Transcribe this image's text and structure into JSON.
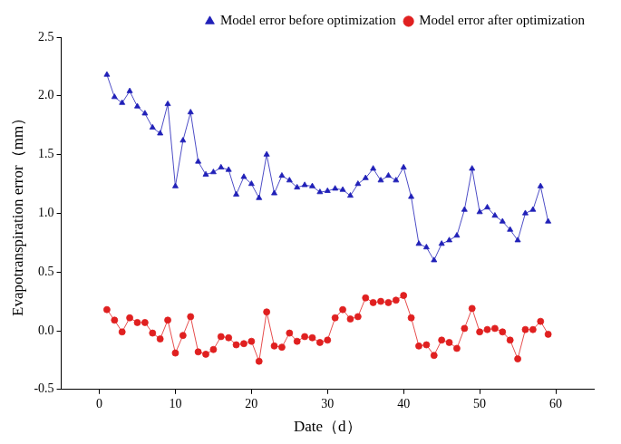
{
  "chart_data": {
    "type": "line",
    "x_label": "Date（d）",
    "y_label": "Evapotranspiration error（mm）",
    "x": [
      1,
      2,
      3,
      4,
      5,
      6,
      7,
      8,
      9,
      10,
      11,
      12,
      13,
      14,
      15,
      16,
      17,
      18,
      19,
      20,
      21,
      22,
      23,
      24,
      25,
      26,
      27,
      28,
      29,
      30,
      31,
      32,
      33,
      34,
      35,
      36,
      37,
      38,
      39,
      40,
      41,
      42,
      43,
      44,
      45,
      46,
      47,
      48,
      49,
      50,
      51,
      52,
      53,
      54,
      55,
      56,
      57,
      58,
      59
    ],
    "series": [
      {
        "name": "Model error before optimization",
        "color": "#2020b8",
        "marker": "triangle",
        "values": [
          2.18,
          1.99,
          1.94,
          2.04,
          1.91,
          1.85,
          1.73,
          1.68,
          1.93,
          1.23,
          1.62,
          1.86,
          1.44,
          1.33,
          1.35,
          1.39,
          1.37,
          1.16,
          1.31,
          1.25,
          1.13,
          1.5,
          1.17,
          1.32,
          1.28,
          1.22,
          1.24,
          1.23,
          1.18,
          1.19,
          1.21,
          1.2,
          1.15,
          1.25,
          1.3,
          1.38,
          1.28,
          1.32,
          1.28,
          1.39,
          1.14,
          0.74,
          0.71,
          0.6,
          0.74,
          0.77,
          0.81,
          1.03,
          1.38,
          1.01,
          1.05,
          0.98,
          0.93,
          0.86,
          0.77,
          1.0,
          1.03,
          1.23,
          0.93
        ]
      },
      {
        "name": "Model error after optimization",
        "color": "#e02020",
        "marker": "circle",
        "values": [
          0.18,
          0.09,
          -0.01,
          0.11,
          0.07,
          0.07,
          -0.02,
          -0.07,
          0.09,
          -0.19,
          -0.04,
          0.12,
          -0.18,
          -0.2,
          -0.16,
          -0.05,
          -0.06,
          -0.12,
          -0.11,
          -0.09,
          -0.26,
          0.16,
          -0.13,
          -0.14,
          -0.02,
          -0.09,
          -0.05,
          -0.06,
          -0.1,
          -0.08,
          0.11,
          0.18,
          0.1,
          0.12,
          0.28,
          0.24,
          0.25,
          0.24,
          0.26,
          0.3,
          0.11,
          -0.13,
          -0.12,
          -0.21,
          -0.08,
          -0.1,
          -0.15,
          0.02,
          0.19,
          -0.01,
          0.01,
          0.02,
          -0.01,
          -0.08,
          -0.24,
          0.01,
          0.01,
          0.08,
          -0.03
        ]
      }
    ],
    "xlim": [
      -5,
      65
    ],
    "xticks": [
      0,
      10,
      20,
      30,
      40,
      50,
      60
    ],
    "ylim": [
      -0.5,
      2.5
    ],
    "yticks": [
      -0.5,
      {
        "value": 0,
        "label": "0.0"
      },
      0.5,
      {
        "value": 1,
        "label": "1.0"
      },
      1.5,
      {
        "value": 2,
        "label": "2.0"
      },
      2.5
    ],
    "grid": false,
    "legend": "upper right"
  }
}
